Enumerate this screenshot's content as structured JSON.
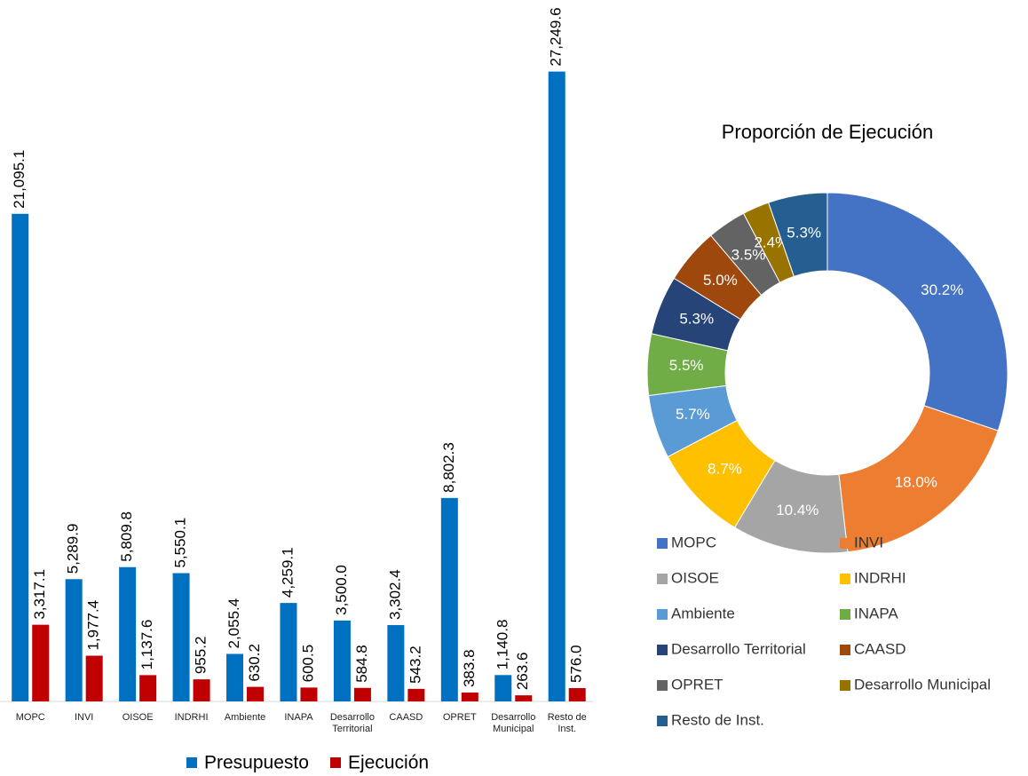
{
  "chart_data": [
    {
      "type": "bar",
      "categories": [
        "MOPC",
        "INVI",
        "OISOE",
        "INDRHI",
        "Ambiente",
        "INAPA",
        "Desarrollo Territorial",
        "CAASD",
        "OPRET",
        "Desarrollo Municipal",
        "Resto de Inst."
      ],
      "series": [
        {
          "name": "Presupuesto",
          "color": "#0070c0",
          "values": [
            21095.1,
            5289.9,
            5809.8,
            5550.1,
            2055.4,
            4259.1,
            3500.0,
            3302.4,
            8802.3,
            1140.8,
            27249.6
          ],
          "value_labels": [
            "21,095.1",
            "5,289.9",
            "5,809.8",
            "5,550.1",
            "2,055.4",
            "4,259.1",
            "3,500.0",
            "3,302.4",
            "8,802.3",
            "1,140.8",
            "27,249.6"
          ]
        },
        {
          "name": "Ejecución",
          "color": "#c00000",
          "values": [
            3317.1,
            1977.4,
            1137.6,
            955.2,
            630.2,
            600.5,
            584.8,
            543.2,
            383.8,
            263.6,
            576.0
          ],
          "value_labels": [
            "3,317.1",
            "1,977.4",
            "1,137.6",
            "955.2",
            "630.2",
            "600.5",
            "584.8",
            "543.2",
            "383.8",
            "263.6",
            "576.0"
          ]
        }
      ],
      "ylim": [
        0,
        30000
      ],
      "legend": "bottom"
    },
    {
      "type": "donut",
      "title": "Proporción de Ejecución",
      "categories": [
        "MOPC",
        "INVI",
        "OISOE",
        "INDRHI",
        "Ambiente",
        "INAPA",
        "Desarrollo Territorial",
        "CAASD",
        "OPRET",
        "Desarrollo Municipal",
        "Resto de Inst."
      ],
      "values": [
        30.2,
        18.0,
        10.4,
        8.7,
        5.7,
        5.5,
        5.3,
        5.0,
        3.5,
        2.4,
        5.3
      ],
      "value_labels": [
        "30.2%",
        "18.0%",
        "10.4%",
        "8.7%",
        "5.7%",
        "5.5%",
        "5.3%",
        "5.0%",
        "3.5%",
        "2.4%",
        "5.3%"
      ],
      "colors": [
        "#4472c4",
        "#ed7d31",
        "#a5a5a5",
        "#ffc000",
        "#5b9bd5",
        "#70ad47",
        "#264478",
        "#9e480e",
        "#636363",
        "#997300",
        "#255e91"
      ],
      "legend": "bottom"
    }
  ]
}
